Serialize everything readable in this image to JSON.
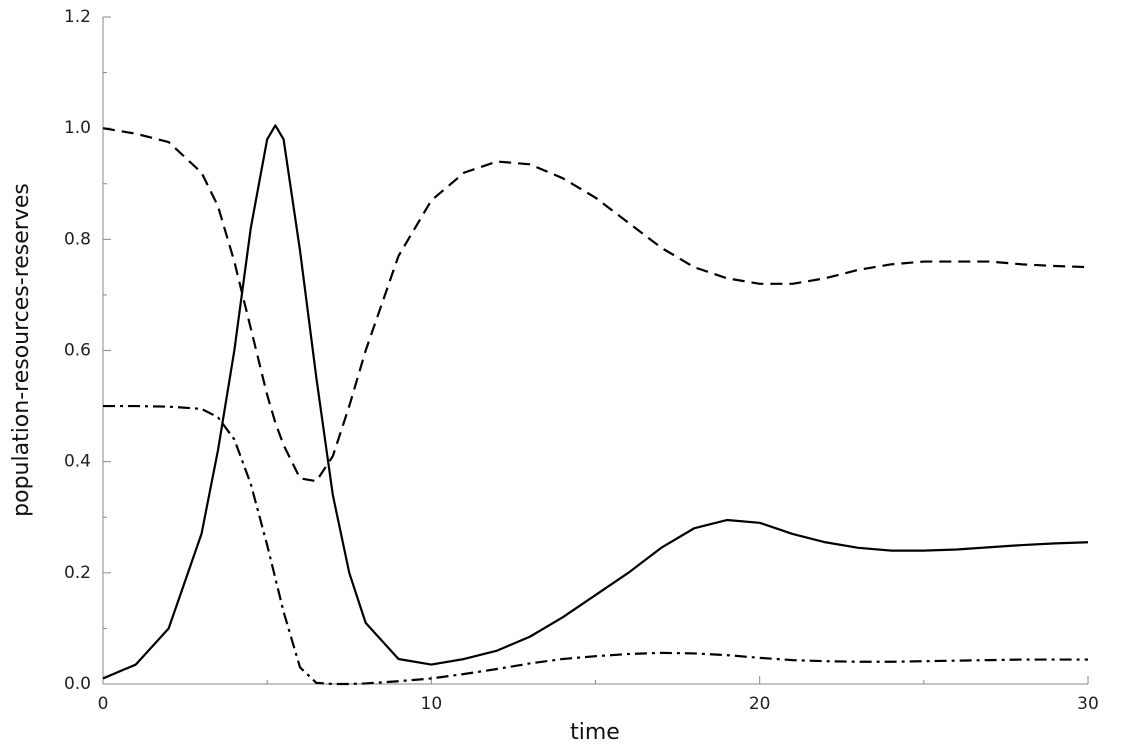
{
  "chart_data": {
    "type": "line",
    "xlabel": "time",
    "ylabel": "population-resources-reserves",
    "x": [
      0,
      1,
      2,
      3,
      3.5,
      4,
      4.5,
      5,
      5.25,
      5.5,
      6,
      6.5,
      7,
      7.5,
      8,
      9,
      10,
      11,
      12,
      13,
      14,
      15,
      16,
      17,
      18,
      19,
      20,
      21,
      22,
      23,
      24,
      25,
      26,
      27,
      28,
      29,
      30
    ],
    "series": [
      {
        "color": "#000000",
        "dash": "solid",
        "values": [
          0.01,
          0.035,
          0.1,
          0.27,
          0.42,
          0.6,
          0.82,
          0.98,
          1.005,
          0.98,
          0.78,
          0.55,
          0.34,
          0.2,
          0.11,
          0.045,
          0.035,
          0.045,
          0.06,
          0.085,
          0.12,
          0.16,
          0.2,
          0.245,
          0.28,
          0.295,
          0.29,
          0.27,
          0.255,
          0.245,
          0.24,
          0.24,
          0.242,
          0.246,
          0.25,
          0.253,
          0.255
        ]
      },
      {
        "color": "#000000",
        "dash": "dashed",
        "values": [
          1.0,
          0.99,
          0.975,
          0.92,
          0.86,
          0.76,
          0.64,
          0.52,
          0.47,
          0.43,
          0.37,
          0.365,
          0.41,
          0.5,
          0.6,
          0.77,
          0.87,
          0.92,
          0.94,
          0.935,
          0.91,
          0.875,
          0.83,
          0.785,
          0.75,
          0.73,
          0.72,
          0.72,
          0.73,
          0.745,
          0.755,
          0.76,
          0.76,
          0.76,
          0.755,
          0.752,
          0.75
        ]
      },
      {
        "color": "#000000",
        "dash": "dashdot",
        "values": [
          0.5,
          0.5,
          0.499,
          0.495,
          0.48,
          0.44,
          0.36,
          0.25,
          0.19,
          0.13,
          0.03,
          0.002,
          0,
          0,
          0.001,
          0.005,
          0.01,
          0.018,
          0.027,
          0.037,
          0.045,
          0.05,
          0.054,
          0.056,
          0.055,
          0.052,
          0.047,
          0.043,
          0.041,
          0.04,
          0.04,
          0.041,
          0.042,
          0.043,
          0.044,
          0.044,
          0.044
        ]
      }
    ],
    "xlim": [
      0,
      30
    ],
    "xticks": [
      0,
      10,
      20,
      30
    ],
    "xminorticks": [
      5,
      15,
      25
    ],
    "ylim": [
      0,
      1.2
    ],
    "yticks": [
      {
        "value": 0,
        "label": "0.0"
      },
      0.2,
      0.4,
      0.6,
      0.8,
      {
        "value": 1,
        "label": "1.0"
      },
      1.2
    ],
    "yminorticks": [
      0.1,
      0.3,
      0.5,
      0.7,
      0.9,
      1.1
    ],
    "grid": false
  }
}
